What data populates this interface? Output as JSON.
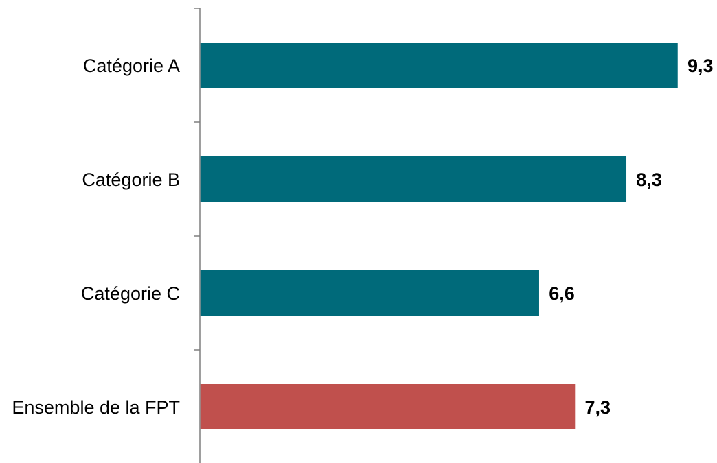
{
  "chart_data": {
    "type": "bar",
    "orientation": "horizontal",
    "categories": [
      "Catégorie A",
      "Catégorie B",
      "Catégorie C",
      "Ensemble de la FPT"
    ],
    "values": [
      9.3,
      8.3,
      6.6,
      7.3
    ],
    "value_labels": [
      "9,3",
      "8,3",
      "6,6",
      "7,3"
    ],
    "bar_colors": [
      "#006a7a",
      "#006a7a",
      "#006a7a",
      "#c0504d"
    ],
    "xlim": [
      0,
      9.3
    ],
    "title": "",
    "xlabel": "",
    "ylabel": "",
    "grid": false,
    "legend": "none"
  }
}
